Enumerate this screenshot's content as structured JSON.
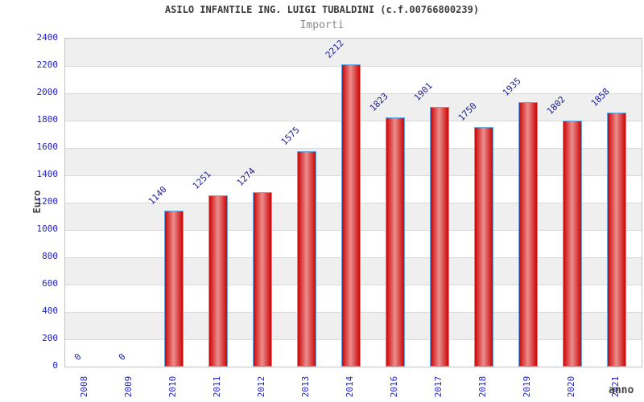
{
  "chart_data": {
    "type": "bar",
    "title": "ASILO INFANTILE ING. LUIGI TUBALDINI (c.f.00766800239)",
    "subtitle": "Importi",
    "ylabel": "Euro",
    "xlabel": "anno",
    "categories": [
      "2008",
      "2009",
      "2010",
      "2011",
      "2012",
      "2013",
      "2014",
      "2016",
      "2017",
      "2018",
      "2019",
      "2020",
      "2021"
    ],
    "values": [
      0,
      0,
      1140,
      1251,
      1274,
      1575,
      2212,
      1823,
      1901,
      1750,
      1935,
      1802,
      1858
    ],
    "ylim": [
      0,
      2400
    ],
    "ytick_step": 200,
    "grid": true,
    "legend_position": "none",
    "value_labels_shown": true,
    "colors": {
      "bar_gradient_edge": "#cb0505",
      "bar_gradient_center": "#ec8e8e",
      "bar_border": "#65a9e6",
      "axis_tick_text": "#2020cf",
      "value_label_text": "#1b1b96",
      "title_text": "#3c3c3c",
      "subtitle_text": "#8a8a8a",
      "axis_label_text": "#444444",
      "band_fill": "#efefef",
      "band_fill_alt": "#ffffff",
      "grid_line": "#d9d9d9",
      "plot_border": "#c4c4c4",
      "background": "#ffffff"
    }
  }
}
